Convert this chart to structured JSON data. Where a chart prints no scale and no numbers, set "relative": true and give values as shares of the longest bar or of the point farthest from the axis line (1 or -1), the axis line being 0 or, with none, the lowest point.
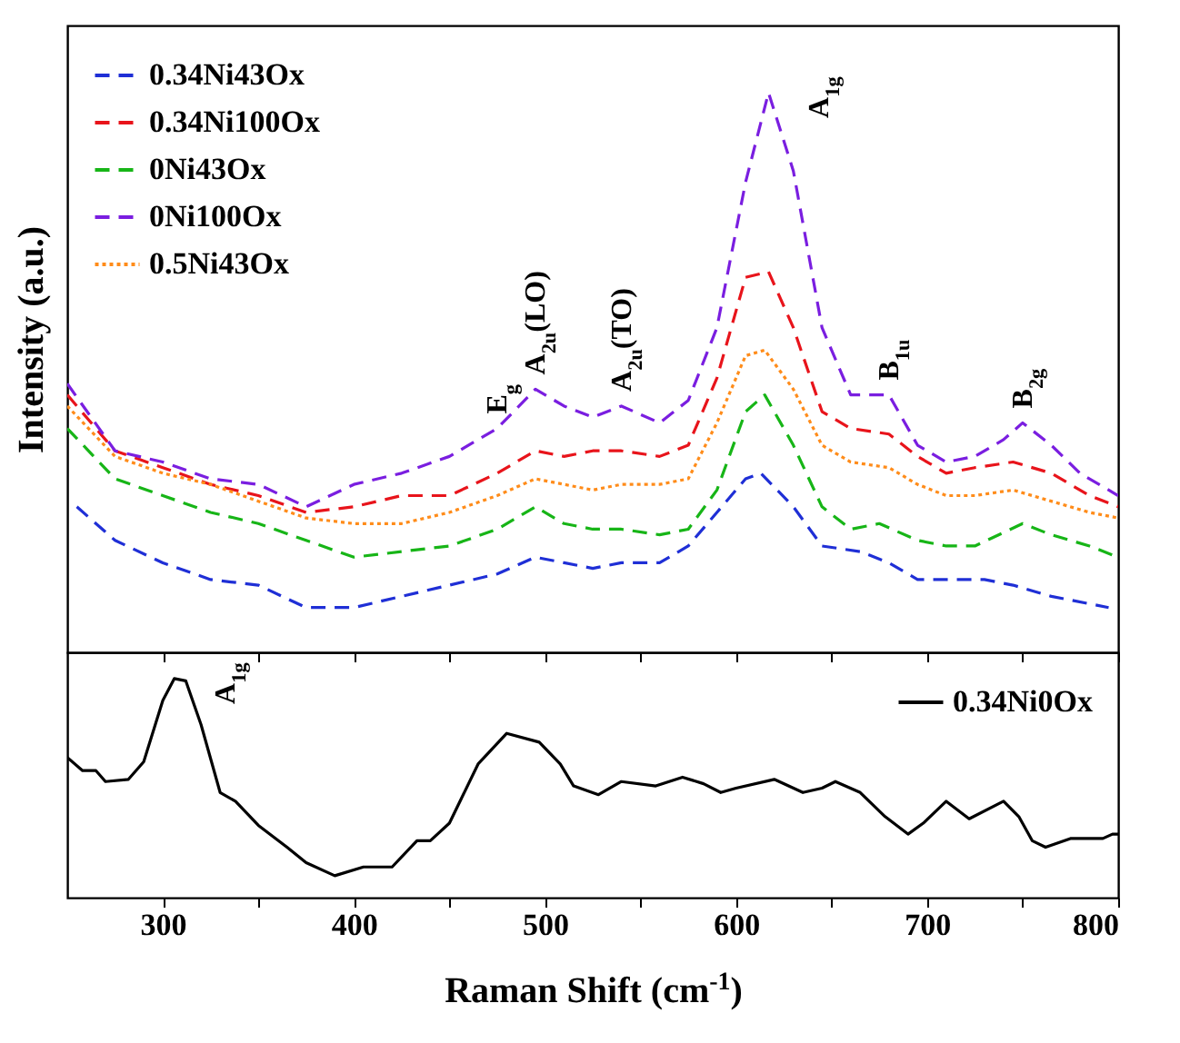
{
  "chart_data": [
    {
      "type": "line",
      "relative": true,
      "ylabel": "Intensity (a.u.)",
      "xlim": [
        250,
        800
      ],
      "xticks": [
        300,
        {
          "value": 350,
          "label": null
        },
        400,
        {
          "value": 450,
          "label": null
        },
        500,
        {
          "value": 550,
          "label": null
        },
        600,
        {
          "value": 650,
          "label": null
        },
        700,
        {
          "value": 750,
          "label": null
        },
        800
      ],
      "tick_labels": false,
      "legend": "top left",
      "marker": "none",
      "annotations": [
        {
          "text": "E$_{g}$",
          "x": 475,
          "y": 0.4
        },
        {
          "text": "A$_{2u}$(LO)",
          "x": 495,
          "y": 0.47
        },
        {
          "text": "A$_{2u}$(TO)",
          "x": 540,
          "y": 0.44
        },
        {
          "text": "A$_{1g}$",
          "x": 617,
          "y": 1
        },
        {
          "text": "B$_{1u}$",
          "x": 680,
          "y": 0.46
        },
        {
          "text": "B$_{2g}$",
          "x": 750,
          "y": 0.41
        }
      ],
      "series": [
        {
          "name": "0.34Ni43Ox",
          "color": "#1f2fd6",
          "line_style": "dashed",
          "x": [
            255,
            275,
            300,
            325,
            350,
            375,
            400,
            425,
            450,
            475,
            495,
            510,
            525,
            540,
            560,
            575,
            590,
            605,
            613,
            630,
            645,
            665,
            680,
            695,
            710,
            730,
            745,
            765,
            795
          ],
          "values": [
            0.26,
            0.2,
            0.16,
            0.13,
            0.12,
            0.08,
            0.08,
            0.1,
            0.12,
            0.14,
            0.17,
            0.16,
            0.15,
            0.16,
            0.16,
            0.19,
            0.25,
            0.31,
            0.32,
            0.26,
            0.19,
            0.18,
            0.16,
            0.13,
            0.13,
            0.13,
            0.12,
            0.1,
            0.08
          ]
        },
        {
          "name": "0.34Ni100Ox",
          "color": "#e8141b",
          "line_style": "dashed",
          "x": [
            250,
            275,
            300,
            325,
            350,
            375,
            400,
            425,
            450,
            475,
            495,
            510,
            525,
            540,
            560,
            575,
            590,
            605,
            617,
            630,
            645,
            660,
            680,
            695,
            710,
            725,
            745,
            765,
            785,
            800
          ],
          "values": [
            0.46,
            0.36,
            0.33,
            0.3,
            0.28,
            0.25,
            0.26,
            0.28,
            0.28,
            0.32,
            0.36,
            0.35,
            0.36,
            0.36,
            0.35,
            0.37,
            0.49,
            0.67,
            0.68,
            0.58,
            0.43,
            0.4,
            0.39,
            0.35,
            0.32,
            0.33,
            0.34,
            0.32,
            0.28,
            0.26
          ]
        },
        {
          "name": "0Ni43Ox",
          "color": "#17b517",
          "line_style": "dashed",
          "x": [
            250,
            275,
            300,
            325,
            350,
            375,
            400,
            425,
            450,
            475,
            495,
            510,
            525,
            540,
            560,
            575,
            590,
            605,
            615,
            630,
            645,
            660,
            675,
            695,
            710,
            725,
            750,
            765,
            785,
            800
          ],
          "values": [
            0.4,
            0.31,
            0.28,
            0.25,
            0.23,
            0.2,
            0.17,
            0.18,
            0.19,
            0.22,
            0.26,
            0.23,
            0.22,
            0.22,
            0.21,
            0.22,
            0.29,
            0.43,
            0.46,
            0.37,
            0.26,
            0.22,
            0.23,
            0.2,
            0.19,
            0.19,
            0.23,
            0.21,
            0.19,
            0.17
          ]
        },
        {
          "name": "0Ni100Ox",
          "color": "#7a1ee0",
          "line_style": "dashed",
          "x": [
            250,
            275,
            300,
            325,
            350,
            375,
            400,
            425,
            450,
            475,
            495,
            510,
            525,
            540,
            560,
            575,
            590,
            605,
            617,
            630,
            645,
            660,
            680,
            695,
            710,
            725,
            740,
            750,
            765,
            780,
            800
          ],
          "values": [
            0.48,
            0.36,
            0.34,
            0.31,
            0.3,
            0.26,
            0.3,
            0.32,
            0.35,
            0.4,
            0.47,
            0.44,
            0.42,
            0.44,
            0.41,
            0.45,
            0.58,
            0.84,
            1,
            0.86,
            0.58,
            0.46,
            0.46,
            0.37,
            0.34,
            0.35,
            0.38,
            0.41,
            0.37,
            0.32,
            0.28
          ]
        },
        {
          "name": "0.5Ni43Ox",
          "color": "#ff8c1a",
          "line_style": "dotted",
          "x": [
            250,
            275,
            300,
            325,
            350,
            375,
            400,
            425,
            450,
            475,
            495,
            510,
            525,
            540,
            560,
            575,
            590,
            605,
            615,
            630,
            645,
            660,
            680,
            695,
            710,
            725,
            745,
            765,
            785,
            800
          ],
          "values": [
            0.44,
            0.35,
            0.32,
            0.3,
            0.27,
            0.24,
            0.23,
            0.23,
            0.25,
            0.28,
            0.31,
            0.3,
            0.29,
            0.3,
            0.3,
            0.31,
            0.41,
            0.53,
            0.54,
            0.47,
            0.37,
            0.34,
            0.33,
            0.3,
            0.28,
            0.28,
            0.29,
            0.27,
            0.25,
            0.24
          ]
        }
      ]
    },
    {
      "type": "line",
      "relative": true,
      "xlabel": "Raman Shift (cm$^{-1}$)",
      "xlim": [
        250,
        800
      ],
      "xticks": [
        300,
        {
          "value": 350,
          "label": null
        },
        400,
        {
          "value": 450,
          "label": null
        },
        500,
        {
          "value": 550,
          "label": null
        },
        600,
        {
          "value": 650,
          "label": null
        },
        700,
        {
          "value": 750,
          "label": null
        },
        800
      ],
      "tick_labels": "x",
      "legend": "top right",
      "marker": "none",
      "annotations": [
        {
          "text": "A$_{1g}$",
          "x": 306,
          "y": 1
        }
      ],
      "series": [
        {
          "name": "0.34Ni0Ox",
          "color": "#000000",
          "line_style": "solid",
          "x": [
            250,
            258,
            265,
            270,
            282,
            290,
            300,
            306,
            312,
            320,
            330,
            338,
            350,
            365,
            375,
            390,
            405,
            420,
            433,
            440,
            450,
            465,
            480,
            497,
            508,
            515,
            528,
            540,
            558,
            572,
            583,
            592,
            600,
            620,
            635,
            645,
            652,
            665,
            678,
            690,
            698,
            710,
            722,
            740,
            748,
            755,
            762,
            775,
            792,
            797,
            800
          ],
          "values": [
            0.64,
            0.58,
            0.58,
            0.53,
            0.54,
            0.62,
            0.9,
            1,
            0.99,
            0.79,
            0.48,
            0.44,
            0.33,
            0.23,
            0.16,
            0.1,
            0.14,
            0.14,
            0.26,
            0.26,
            0.34,
            0.61,
            0.75,
            0.71,
            0.61,
            0.51,
            0.47,
            0.53,
            0.51,
            0.55,
            0.52,
            0.48,
            0.5,
            0.54,
            0.48,
            0.5,
            0.53,
            0.48,
            0.37,
            0.29,
            0.34,
            0.44,
            0.36,
            0.44,
            0.37,
            0.26,
            0.23,
            0.27,
            0.27,
            0.29,
            0.29
          ]
        }
      ]
    }
  ]
}
